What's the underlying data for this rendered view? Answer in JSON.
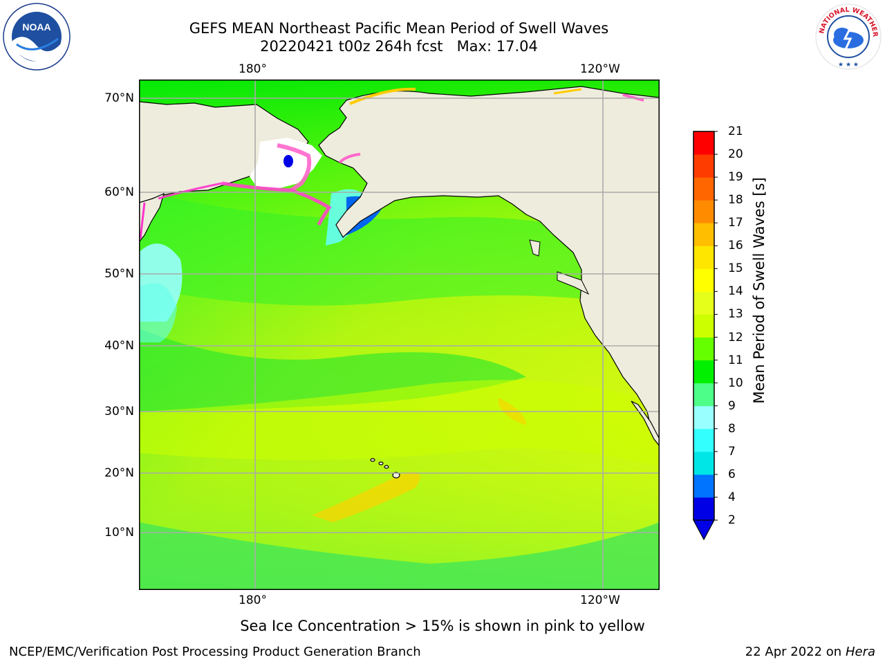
{
  "header": {
    "title": "GEFS MEAN Northeast Pacific Mean Period of Swell Waves",
    "subtitle": "20220421 t00z 264h fcst   Max: 17.04"
  },
  "logos": {
    "left": {
      "icon": "noaa-logo",
      "text": "NOAA"
    },
    "right": {
      "icon": "nws-logo",
      "text": "NATIONAL WEATHER SERVICE"
    }
  },
  "map": {
    "lon_labels_top": [
      "180°",
      "120°W"
    ],
    "lon_labels_bottom": [
      "180°",
      "120°W"
    ],
    "lat_labels": [
      "70°N",
      "60°N",
      "50°N",
      "40°N",
      "30°N",
      "20°N",
      "10°N"
    ],
    "colors": {
      "land": "#eeecdc",
      "coast": "#000000",
      "grid": "#aaaaaa",
      "ice_free": "#ffffff"
    }
  },
  "colorbar": {
    "label": "Mean Period of Swell Waves [s]",
    "ticks": [
      "2",
      "4",
      "6",
      "7",
      "8",
      "9",
      "10",
      "11",
      "12",
      "13",
      "14",
      "15",
      "16",
      "17",
      "18",
      "19",
      "20",
      "21"
    ],
    "colors": [
      "#0000e6",
      "#0073ff",
      "#00e6e6",
      "#33ffff",
      "#99ffff",
      "#4dff88",
      "#00f000",
      "#66ff00",
      "#ccff00",
      "#e6ff1a",
      "#ffff00",
      "#ffe600",
      "#ffbf00",
      "#ff8c00",
      "#ff6600",
      "#ff3c00",
      "#ff0000"
    ]
  },
  "footer": {
    "note": "Sea Ice Concentration > 15% is shown in pink to yellow",
    "credit": "NCEP/EMC/Verification Post Processing Product Generation Branch",
    "date": "22 Apr 2022 on ",
    "host": "Hera"
  }
}
